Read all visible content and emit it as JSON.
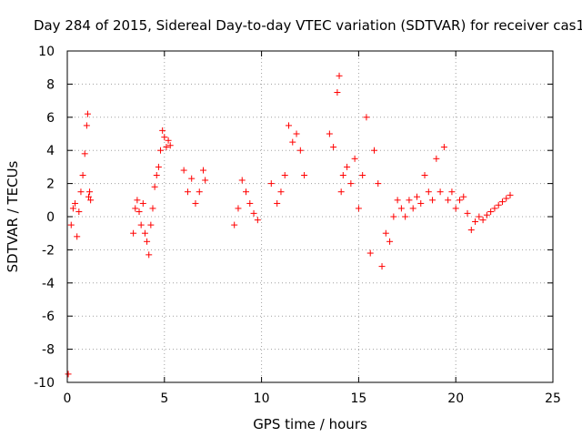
{
  "chart_data": {
    "type": "scatter",
    "title": "Day 284 of 2015, Sidereal Day-to-day VTEC variation (SDTVAR) for receiver cas1",
    "xlabel": "GPS time / hours",
    "ylabel": "SDTVAR / TECUs",
    "xlim": [
      0,
      25
    ],
    "ylim": [
      -10,
      10
    ],
    "xticks": [
      "0",
      "5",
      "10",
      "15",
      "20",
      "25"
    ],
    "yticks": [
      "-10",
      "-8",
      "-6",
      "-4",
      "-2",
      "0",
      "2",
      "4",
      "6",
      "8",
      "10"
    ],
    "grid": true,
    "marker": "+",
    "series": [
      {
        "name": "SDTVAR",
        "color": "#ff0000",
        "x": [
          0.05,
          0.2,
          0.3,
          0.4,
          0.5,
          0.6,
          0.7,
          0.8,
          0.9,
          1.0,
          1.05,
          1.1,
          1.15,
          1.2,
          3.4,
          3.5,
          3.6,
          3.7,
          3.8,
          3.9,
          4.0,
          4.1,
          4.2,
          4.3,
          4.4,
          4.5,
          4.6,
          4.7,
          4.8,
          4.9,
          5.0,
          5.1,
          5.2,
          5.3,
          6.0,
          6.2,
          6.4,
          6.6,
          6.8,
          7.0,
          7.1,
          8.6,
          8.8,
          9.0,
          9.2,
          9.4,
          9.6,
          9.8,
          10.5,
          10.8,
          11.0,
          11.2,
          11.4,
          11.6,
          11.8,
          12.0,
          12.2,
          13.5,
          13.7,
          13.9,
          14.0,
          14.1,
          14.2,
          14.4,
          14.6,
          14.8,
          15.0,
          15.2,
          15.4,
          15.6,
          15.8,
          16.0,
          16.2,
          16.4,
          16.6,
          16.8,
          17.0,
          17.2,
          17.4,
          17.6,
          17.8,
          18.0,
          18.2,
          18.4,
          18.6,
          18.8,
          19.0,
          19.2,
          19.4,
          19.6,
          19.8,
          20.0,
          20.2,
          20.4,
          20.6,
          20.8,
          21.0,
          21.2,
          21.4,
          21.6,
          21.8,
          22.0,
          22.2,
          22.4,
          22.6,
          22.8
        ],
        "y": [
          -9.5,
          -0.5,
          0.5,
          0.8,
          -1.2,
          0.3,
          1.5,
          2.5,
          3.8,
          5.5,
          6.2,
          1.2,
          1.5,
          1.0,
          -1.0,
          0.5,
          1.0,
          0.3,
          -0.5,
          0.8,
          -1.0,
          -1.5,
          -2.3,
          -0.5,
          0.5,
          1.8,
          2.5,
          3.0,
          4.0,
          5.2,
          4.8,
          4.2,
          4.6,
          4.3,
          2.8,
          1.5,
          2.3,
          0.8,
          1.5,
          2.8,
          2.2,
          -0.5,
          0.5,
          2.2,
          1.5,
          0.8,
          0.2,
          -0.2,
          2.0,
          0.8,
          1.5,
          2.5,
          5.5,
          4.5,
          5.0,
          4.0,
          2.5,
          5.0,
          4.2,
          7.5,
          8.5,
          1.5,
          2.5,
          3.0,
          2.0,
          3.5,
          0.5,
          2.5,
          6.0,
          -2.2,
          4.0,
          2.0,
          -3.0,
          -1.0,
          -1.5,
          0.0,
          1.0,
          0.5,
          0.0,
          1.0,
          0.5,
          1.2,
          0.8,
          2.5,
          1.5,
          1.0,
          3.5,
          1.5,
          4.2,
          1.0,
          1.5,
          0.5,
          1.0,
          1.2,
          0.2,
          -0.8,
          -0.3,
          0.0,
          -0.2,
          0.1,
          0.3,
          0.5,
          0.7,
          0.9,
          1.1,
          1.3
        ]
      }
    ]
  }
}
